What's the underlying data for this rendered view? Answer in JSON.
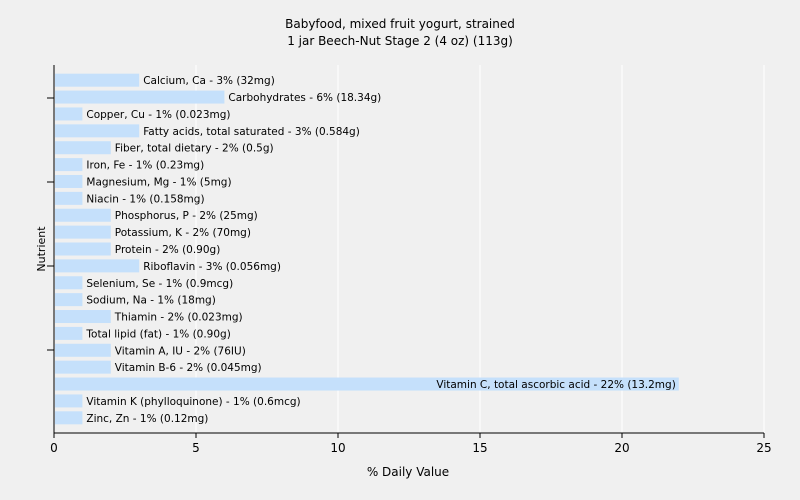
{
  "chart_data": {
    "type": "bar",
    "orientation": "horizontal",
    "title": "Babyfood, mixed fruit yogurt, strained",
    "subtitle": "1 jar Beech-Nut Stage 2 (4 oz) (113g)",
    "xlabel": "% Daily Value",
    "ylabel": "Nutrient",
    "xlim": [
      0,
      25
    ],
    "xticks": [
      "0",
      "5",
      "10",
      "15",
      "20",
      "25"
    ],
    "grid": true,
    "bar_color": "#c5e0fb",
    "categories": [
      "Calcium, Ca",
      "Carbohydrates",
      "Copper, Cu",
      "Fatty acids, total saturated",
      "Fiber, total dietary",
      "Iron, Fe",
      "Magnesium, Mg",
      "Niacin",
      "Phosphorus, P",
      "Potassium, K",
      "Protein",
      "Riboflavin",
      "Selenium, Se",
      "Sodium, Na",
      "Thiamin",
      "Total lipid (fat)",
      "Vitamin A, IU",
      "Vitamin B-6",
      "Vitamin C, total ascorbic acid",
      "Vitamin K (phylloquinone)",
      "Zinc, Zn"
    ],
    "values": [
      3,
      6,
      1,
      3,
      2,
      1,
      1,
      1,
      2,
      2,
      2,
      3,
      1,
      1,
      2,
      1,
      2,
      2,
      22,
      1,
      1
    ],
    "labels": [
      "Calcium, Ca - 3% (32mg)",
      "Carbohydrates - 6% (18.34g)",
      "Copper, Cu - 1% (0.023mg)",
      "Fatty acids, total saturated - 3% (0.584g)",
      "Fiber, total dietary - 2% (0.5g)",
      "Iron, Fe - 1% (0.23mg)",
      "Magnesium, Mg - 1% (5mg)",
      "Niacin - 1% (0.158mg)",
      "Phosphorus, P - 2% (25mg)",
      "Potassium, K - 2% (70mg)",
      "Protein - 2% (0.90g)",
      "Riboflavin - 3% (0.056mg)",
      "Selenium, Se - 1% (0.9mcg)",
      "Sodium, Na - 1% (18mg)",
      "Thiamin - 2% (0.023mg)",
      "Total lipid (fat) - 1% (0.90g)",
      "Vitamin A, IU - 2% (76IU)",
      "Vitamin B-6 - 2% (0.045mg)",
      "Vitamin C, total ascorbic acid - 22% (13.2mg)",
      "Vitamin K (phylloquinone) - 1% (0.6mcg)",
      "Zinc, Zn - 1% (0.12mg)"
    ]
  }
}
